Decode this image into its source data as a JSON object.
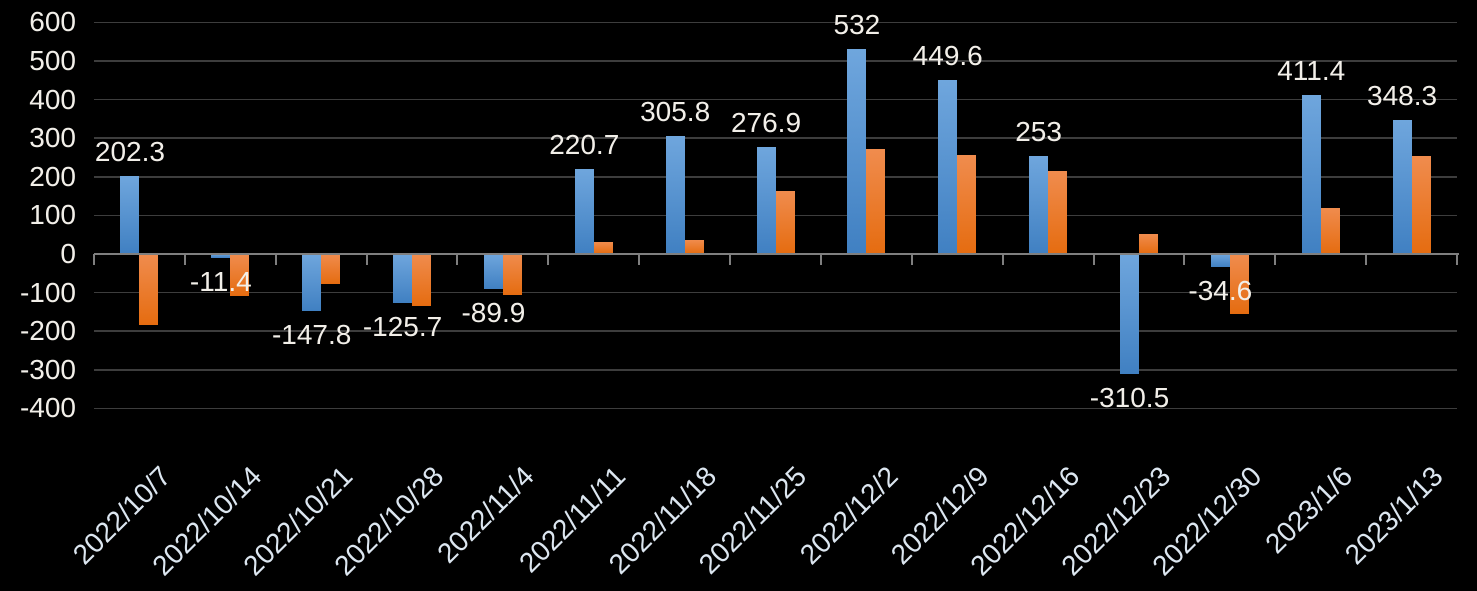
{
  "chart_data": {
    "type": "bar",
    "title": "",
    "xlabel": "",
    "ylabel": "",
    "categories": [
      "2022/10/7",
      "2022/10/14",
      "2022/10/21",
      "2022/10/28",
      "2022/11/4",
      "2022/11/11",
      "2022/11/18",
      "2022/11/25",
      "2022/12/2",
      "2022/12/9",
      "2022/12/16",
      "2022/12/23",
      "2022/12/30",
      "2023/1/6",
      "2023/1/13"
    ],
    "series": [
      {
        "name": "blue-series",
        "color": "#5B9BD5",
        "values": [
          202.3,
          -11.4,
          -147.8,
          -125.7,
          -89.9,
          220.7,
          305.8,
          276.9,
          532,
          449.6,
          253,
          -310.5,
          -34.6,
          411.4,
          348.3
        ],
        "data_labels": [
          "202.3",
          "-11.4",
          "-147.8",
          "-125.7",
          "-89.9",
          "220.7",
          "305.8",
          "276.9",
          "532",
          "449.6",
          "253",
          "-310.5",
          "-34.6",
          "411.4",
          "348.3"
        ]
      },
      {
        "name": "orange-series",
        "color": "#ED7D31",
        "values": [
          -185,
          -108,
          -78,
          -135,
          -105,
          30,
          37,
          163,
          272,
          256,
          215,
          52,
          -155,
          120,
          255
        ],
        "data_labels": []
      }
    ],
    "ylim": [
      -400,
      600
    ],
    "y_tick_step": 100,
    "y_tick_labels": [
      "600",
      "500",
      "400",
      "300",
      "200",
      "100",
      "0",
      "-100",
      "-200",
      "-300",
      "-400"
    ],
    "grid": true,
    "legend": "none",
    "x_label_rotation_deg": 45
  },
  "colors": {
    "background": "#000000",
    "gridline": "#3d3d3d",
    "axis": "#7f7f7f",
    "blue_bar_top": "#6fa6dd",
    "blue_bar_bottom": "#4080c2",
    "orange_bar_top": "#f08c4e",
    "orange_bar_bottom": "#e56c10",
    "value_label_text": "#f2efe9",
    "date_label_text": "#dce6f0"
  }
}
